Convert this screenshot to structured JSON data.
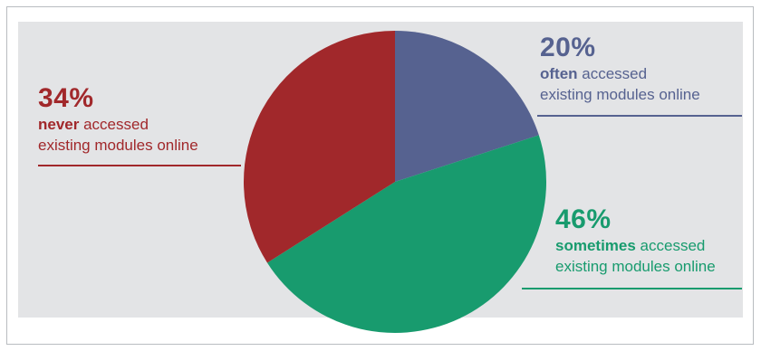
{
  "colors": {
    "never": "#a1282b",
    "often": "#566290",
    "sometimes": "#189b6e",
    "panel": "#e3e4e6"
  },
  "chart_data": {
    "type": "pie",
    "slices": [
      {
        "label": "often",
        "value": 20,
        "color": "#566290"
      },
      {
        "label": "sometimes",
        "value": 46,
        "color": "#189b6e"
      },
      {
        "label": "never",
        "value": 34,
        "color": "#a1282b"
      }
    ],
    "start_angle": "top",
    "direction": "clockwise"
  },
  "callouts": {
    "never": {
      "percent": "34%",
      "keyword": "never",
      "rest": " accessed",
      "line2": "existing modules online"
    },
    "often": {
      "percent": "20%",
      "keyword": "often",
      "rest": " accessed",
      "line2": "existing modules online"
    },
    "sometimes": {
      "percent": "46%",
      "keyword": "sometimes",
      "rest": " accessed",
      "line2": "existing modules online"
    }
  }
}
